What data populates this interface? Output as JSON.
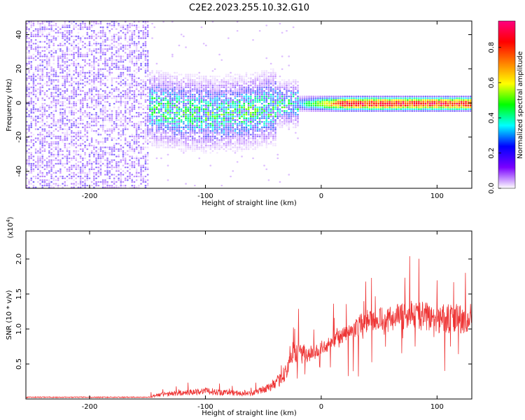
{
  "page": {
    "title": "C2E2.2023.255.10.32.G10"
  },
  "chart_data": [
    {
      "type": "heatmap",
      "title": "C2E2.2023.255.10.32.G10",
      "xlabel": "Height of straight line (km)",
      "ylabel": "Frequency (Hz)",
      "xlim": [
        -255,
        130
      ],
      "ylim": [
        -50,
        48
      ],
      "x_ticks": [
        -200,
        -100,
        0,
        100
      ],
      "y_ticks": [
        -40,
        -20,
        0,
        20,
        40
      ],
      "x_tick_labels": [
        "-200",
        "-100",
        "0",
        "100"
      ],
      "y_tick_labels": [
        "-40",
        "-20",
        "0",
        "20",
        "40"
      ],
      "colorbar": {
        "label": "Normalized spectral amplitude",
        "range": [
          0,
          0.95
        ],
        "ticks": [
          0.0,
          0.2,
          0.4,
          0.6,
          0.8
        ],
        "tick_labels": [
          "0.0",
          "0.2",
          "0.4",
          "0.6",
          "0.8"
        ],
        "colormap": [
          "#ffffff",
          "#7a00ff",
          "#0000ff",
          "#00ffff",
          "#00ff00",
          "#ffff00",
          "#ff8000",
          "#ff0000",
          "#ff0080"
        ]
      },
      "regions": [
        {
          "desc": "broadband noise",
          "x": [
            -255,
            -150
          ],
          "freq": [
            -50,
            48
          ],
          "amplitude": 0.12
        },
        {
          "desc": "emerging signal",
          "x": [
            -150,
            -20
          ],
          "center_freq": 0,
          "spread": 8,
          "amplitude": 0.35
        },
        {
          "desc": "strong line",
          "x": [
            -20,
            130
          ],
          "center_freq": 0,
          "spread": 2.5,
          "amplitude": 0.9
        }
      ]
    },
    {
      "type": "line",
      "xlabel": "Height of straight line (km)",
      "ylabel": "SNR (10 * v/v)",
      "y_multiplier_label": "(x10",
      "y_multiplier_exp": "4",
      "y_multiplier_close": ")",
      "xlim": [
        -255,
        130
      ],
      "ylim": [
        0,
        2.4
      ],
      "x_ticks": [
        -200,
        -100,
        0,
        100
      ],
      "y_ticks": [
        0.5,
        1.0,
        1.5,
        2.0
      ],
      "x_tick_labels": [
        "-200",
        "-100",
        "0",
        "100"
      ],
      "y_tick_labels": [
        "0.5",
        "1.0",
        "1.5",
        "2.0"
      ],
      "series": [
        {
          "color": "#ee3333",
          "envelope": [
            [
              -255,
              0.02,
              0.03
            ],
            [
              -150,
              0.02,
              0.03
            ],
            [
              -140,
              0.04,
              0.08
            ],
            [
              -100,
              0.08,
              0.15
            ],
            [
              -80,
              0.06,
              0.12
            ],
            [
              -60,
              0.05,
              0.1
            ],
            [
              -40,
              0.15,
              0.25
            ],
            [
              -30,
              0.3,
              0.5
            ],
            [
              -25,
              0.55,
              0.75
            ],
            [
              -10,
              0.55,
              0.75
            ],
            [
              0,
              0.65,
              0.8
            ],
            [
              20,
              0.85,
              1.0
            ],
            [
              40,
              1.0,
              1.25
            ],
            [
              60,
              1.05,
              1.3
            ],
            [
              80,
              1.05,
              1.35
            ],
            [
              100,
              1.0,
              1.3
            ],
            [
              130,
              1.0,
              1.3
            ]
          ]
        }
      ]
    }
  ]
}
